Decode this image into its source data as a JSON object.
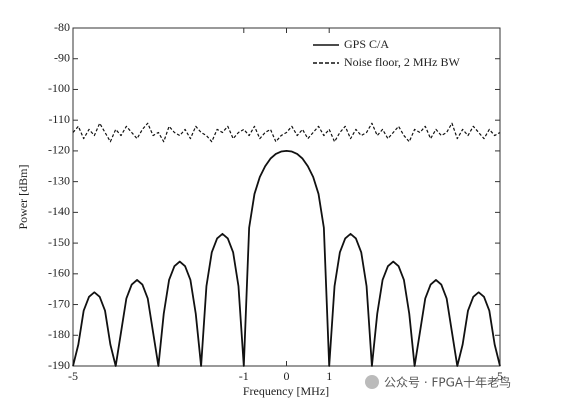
{
  "chart_data": {
    "type": "line",
    "xlabel": "Frequency [MHz]",
    "ylabel": "Power [dBm]",
    "xlim": [
      -5,
      5
    ],
    "ylim": [
      -190,
      -80
    ],
    "xticks": [
      -5,
      -1,
      0,
      1,
      5
    ],
    "yticks": [
      -190,
      -180,
      -170,
      -160,
      -150,
      -140,
      -130,
      -120,
      -110,
      -100,
      -90,
      -80
    ],
    "legend": "top-right",
    "watermark": "公众号 · FPGA十年老鸟",
    "x": [
      -5,
      -4.875,
      -4.75,
      -4.625,
      -4.5,
      -4.375,
      -4.25,
      -4.125,
      -4,
      -3.875,
      -3.75,
      -3.625,
      -3.5,
      -3.375,
      -3.25,
      -3.125,
      -3,
      -2.875,
      -2.75,
      -2.625,
      -2.5,
      -2.375,
      -2.25,
      -2.125,
      -2,
      -1.875,
      -1.75,
      -1.625,
      -1.5,
      -1.375,
      -1.25,
      -1.125,
      -1,
      -0.875,
      -0.75,
      -0.625,
      -0.5,
      -0.375,
      -0.25,
      -0.125,
      0,
      0.125,
      0.25,
      0.375,
      0.5,
      0.625,
      0.75,
      0.875,
      1,
      1.125,
      1.25,
      1.375,
      1.5,
      1.625,
      1.75,
      1.875,
      2,
      2.125,
      2.25,
      2.375,
      2.5,
      2.625,
      2.75,
      2.875,
      3,
      3.125,
      3.25,
      3.375,
      3.5,
      3.625,
      3.75,
      3.875,
      4,
      4.125,
      4.25,
      4.375,
      4.5,
      4.625,
      4.75,
      4.875,
      5
    ],
    "series": [
      {
        "name": "GPS C/A",
        "color": "#111111",
        "dash": "solid",
        "values": [
          -190,
          -183,
          -172,
          -167.5,
          -166,
          -167.5,
          -172,
          -183,
          -190,
          -179,
          -168,
          -163.5,
          -162,
          -163.5,
          -168,
          -179,
          -190,
          -173,
          -162,
          -157.5,
          -156,
          -157.5,
          -162,
          -173,
          -190,
          -164,
          -153,
          -148.5,
          -147,
          -148.5,
          -153,
          -164,
          -190,
          -145,
          -134,
          -128.5,
          -125,
          -122.5,
          -121,
          -120.2,
          -120,
          -120.2,
          -121,
          -122.5,
          -125,
          -128.5,
          -134,
          -145,
          -190,
          -164,
          -153,
          -148.5,
          -147,
          -148.5,
          -153,
          -164,
          -190,
          -173,
          -162,
          -157.5,
          -156,
          -157.5,
          -162,
          -173,
          -190,
          -179,
          -168,
          -163.5,
          -162,
          -163.5,
          -168,
          -179,
          -190,
          -183,
          -172,
          -167.5,
          -166,
          -167.5,
          -172,
          -183,
          -190
        ]
      },
      {
        "name": "Noise floor, 2 MHz BW",
        "color": "#111111",
        "dash": "dashed",
        "values": [
          -114,
          -112,
          -116,
          -113,
          -115,
          -111,
          -114,
          -117,
          -113,
          -115,
          -112,
          -114,
          -116,
          -113,
          -111,
          -115,
          -114,
          -117,
          -112,
          -114,
          -115,
          -113,
          -116,
          -112,
          -114,
          -115,
          -117,
          -113,
          -114,
          -112,
          -116,
          -114,
          -113,
          -115,
          -112,
          -116,
          -114,
          -113,
          -117,
          -115,
          -114,
          -112,
          -115,
          -113,
          -116,
          -114,
          -112,
          -115,
          -113,
          -117,
          -114,
          -112,
          -116,
          -113,
          -115,
          -114,
          -111,
          -115,
          -113,
          -116,
          -114,
          -112,
          -115,
          -117,
          -113,
          -114,
          -112,
          -116,
          -113,
          -115,
          -114,
          -111,
          -116,
          -113,
          -115,
          -112,
          -114,
          -116,
          -113,
          -115,
          -114
        ]
      }
    ]
  }
}
